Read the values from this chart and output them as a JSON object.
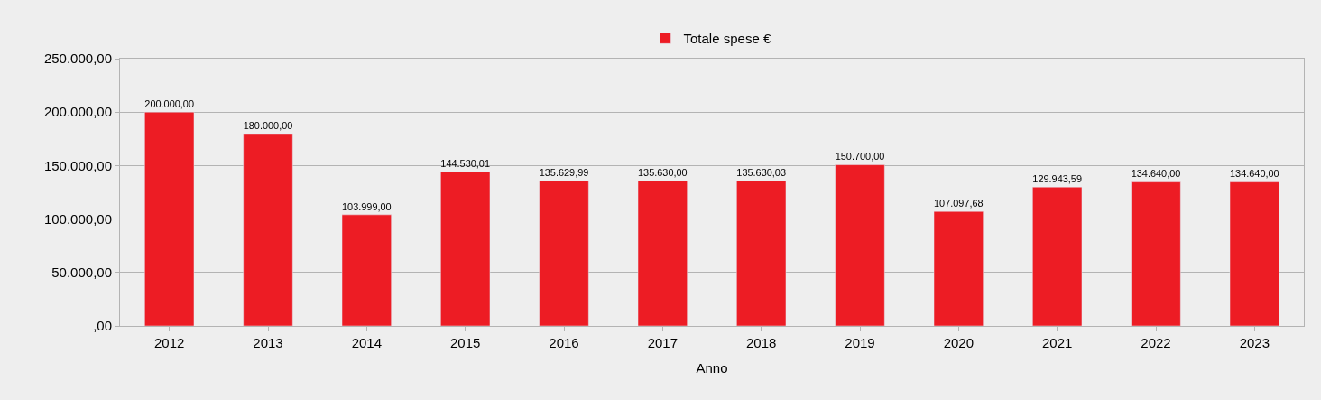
{
  "chart_data": {
    "type": "bar",
    "xlabel": "Anno",
    "categories": [
      "2012",
      "2013",
      "2014",
      "2015",
      "2016",
      "2017",
      "2018",
      "2019",
      "2020",
      "2021",
      "2022",
      "2023"
    ],
    "series": [
      {
        "name": "Totale spese €",
        "color": "#ed1c24",
        "values": [
          200000.0,
          180000.0,
          103999.0,
          144530.01,
          135629.99,
          135630.0,
          135630.03,
          150700.0,
          107097.68,
          129943.59,
          134640.0,
          134640.0
        ],
        "value_labels": [
          "200.000,00",
          "180.000,00",
          "103.999,00",
          "144.530,01",
          "135.629,99",
          "135.630,00",
          "135.630,03",
          "150.700,00",
          "107.097,68",
          "129.943,59",
          "134.640,00",
          "134.640,00"
        ]
      }
    ],
    "ylim": [
      0,
      250000
    ],
    "yticks": [
      {
        "value": 0,
        "label": ",00"
      },
      {
        "value": 50000,
        "label": "50.000,00"
      },
      {
        "value": 100000,
        "label": "100.000,00"
      },
      {
        "value": 150000,
        "label": "150.000,00"
      },
      {
        "value": 200000,
        "label": "200.000,00"
      },
      {
        "value": 250000,
        "label": "250.000,00"
      }
    ],
    "grid": "y",
    "legend": "top"
  }
}
